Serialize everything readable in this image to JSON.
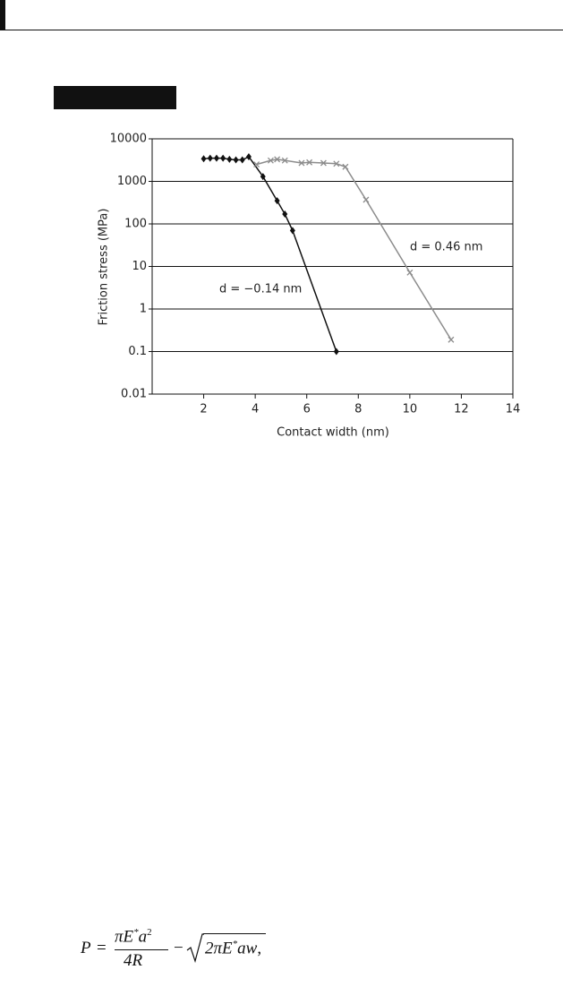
{
  "chart_data": {
    "type": "line",
    "x_label": "Contact width (nm)",
    "y_label": "Friction stress (MPa)",
    "xlim": [
      0,
      14
    ],
    "xticks": [
      2,
      4,
      6,
      8,
      10,
      12,
      14
    ],
    "ylim": [
      0.01,
      10000
    ],
    "yticks": [
      0.01,
      0.1,
      1,
      10,
      100,
      1000,
      10000
    ],
    "y_scale": "log",
    "grid": true,
    "series": [
      {
        "name": "d = −0.14 nm",
        "color": "#111111",
        "marker": "diamond",
        "x": [
          2,
          2.25,
          2.5,
          2.75,
          3,
          3.25,
          3.5,
          3.75,
          4.3,
          4.85,
          5.15,
          5.45,
          7.15
        ],
        "values": [
          3400,
          3500,
          3500,
          3500,
          3300,
          3200,
          3200,
          3800,
          1300,
          350,
          170,
          70,
          0.1
        ]
      },
      {
        "name": "d = 0.46 nm",
        "color": "#8c8c8c",
        "marker": "cross",
        "x": [
          4.05,
          4.6,
          4.85,
          5.15,
          5.8,
          6.1,
          6.65,
          7.15,
          7.5,
          8.3,
          10,
          11.6
        ],
        "values": [
          2500,
          3100,
          3300,
          3100,
          2700,
          2800,
          2700,
          2600,
          2200,
          370,
          7.2,
          0.19
        ]
      }
    ]
  },
  "equation": {
    "lhs": "P",
    "equals": "=",
    "numerator": "πE",
    "star1": "*",
    "a": "a",
    "power": "2",
    "denominator": "4R",
    "minus": "−",
    "radicand": "2πE",
    "star2": "*",
    "radicand_rest": "aw",
    "end": ","
  }
}
